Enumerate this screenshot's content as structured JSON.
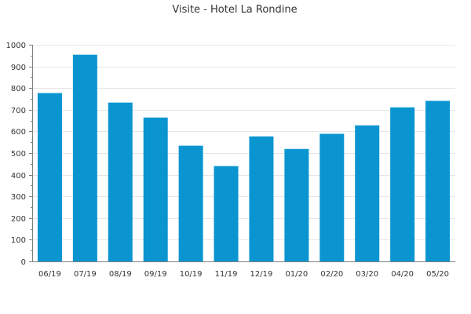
{
  "chart_data": {
    "type": "bar",
    "title": "Visite - Hotel La Rondine",
    "xlabel": "",
    "ylabel": "",
    "categories": [
      "06/19",
      "07/19",
      "08/19",
      "09/19",
      "10/19",
      "11/19",
      "12/19",
      "01/20",
      "02/20",
      "03/20",
      "04/20",
      "05/20"
    ],
    "values": [
      777,
      954,
      733,
      664,
      534,
      440,
      577,
      519,
      589,
      628,
      711,
      741
    ],
    "ylim": [
      0,
      1000
    ],
    "yticks": [
      0,
      100,
      200,
      300,
      400,
      500,
      600,
      700,
      800,
      900,
      1000
    ],
    "grid": true,
    "legend": "none",
    "colors": {
      "bar": "#0a95d1",
      "grid": "#e6e6e6",
      "axis": "#7f7f7f",
      "text": "#333333"
    }
  }
}
